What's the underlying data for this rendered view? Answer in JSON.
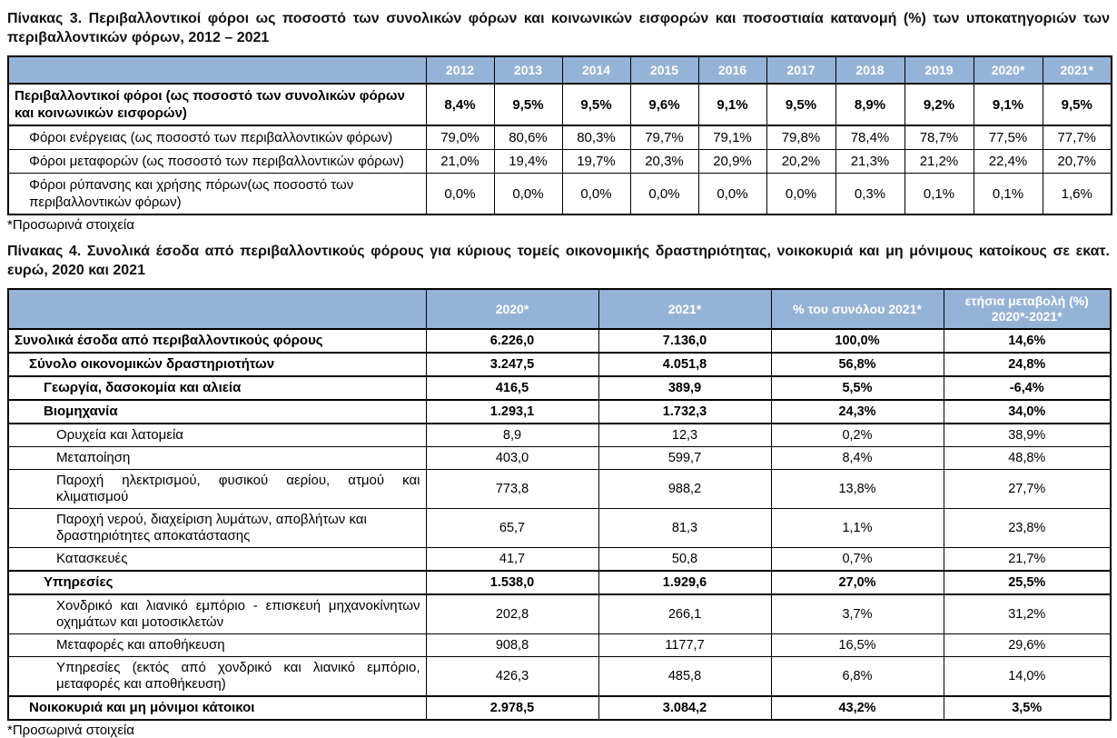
{
  "colors": {
    "header_bg": "#95B3D7",
    "header_text": "#FFFFFF",
    "border": "#000000"
  },
  "table3": {
    "title": "Πίνακας 3. Περιβαλλοντικοί φόροι ως ποσοστό των συνολικών φόρων και κοινωνικών εισφορών και ποσοστιαία κατανομή (%) των υποκατηγοριών των περιβαλλοντικών φόρων, 2012 – 2021",
    "header": [
      "2012",
      "2013",
      "2014",
      "2015",
      "2016",
      "2017",
      "2018",
      "2019",
      "2020*",
      "2021*"
    ],
    "rows": [
      {
        "label": "Περιβαλλοντικοί φόροι (ως ποσοστό των συνολικών φόρων και κοινωνικών εισφορών)",
        "bold": true,
        "indent": 0,
        "values": [
          "8,4%",
          "9,5%",
          "9,5%",
          "9,6%",
          "9,1%",
          "9,5%",
          "8,9%",
          "9,2%",
          "9,1%",
          "9,5%"
        ]
      },
      {
        "label": "Φόροι ενέργειας (ως ποσοστό των περιβαλλοντικών φόρων)",
        "bold": false,
        "indent": 1,
        "values": [
          "79,0%",
          "80,6%",
          "80,3%",
          "79,7%",
          "79,1%",
          "79,8%",
          "78,4%",
          "78,7%",
          "77,5%",
          "77,7%"
        ]
      },
      {
        "label": "Φόροι μεταφορών (ως ποσοστό των περιβαλλοντικών φόρων)",
        "bold": false,
        "indent": 1,
        "values": [
          "21,0%",
          "19,4%",
          "19,7%",
          "20,3%",
          "20,9%",
          "20,2%",
          "21,3%",
          "21,2%",
          "22,4%",
          "20,7%"
        ]
      },
      {
        "label": "Φόροι ρύπανσης και χρήσης πόρων(ως ποσοστό των περιβαλλοντικών φόρων)",
        "bold": false,
        "indent": 1,
        "values": [
          "0,0%",
          "0,0%",
          "0,0%",
          "0,0%",
          "0,0%",
          "0,0%",
          "0,3%",
          "0,1%",
          "0,1%",
          "1,6%"
        ]
      }
    ],
    "footnote": "*Προσωρινά στοιχεία"
  },
  "table4": {
    "title": "Πίνακας 4. Συνολικά έσοδα από περιβαλλοντικούς φόρους για κύριους τομείς οικονομικής δραστηριότητας, νοικοκυριά και μη μόνιμους κατοίκους σε εκατ. ευρώ, 2020 και 2021",
    "header": [
      "2020*",
      "2021*",
      "% του συνόλου 2021*",
      "ετήσια μεταβολή (%)\n2020*-2021*"
    ],
    "rows": [
      {
        "label": "Συνολικά έσοδα από περιβαλλοντικούς φόρους",
        "bold": true,
        "indent": 0,
        "values": [
          "6.226,0",
          "7.136,0",
          "100,0%",
          "14,6%"
        ]
      },
      {
        "label": "Σύνολο οικονομικών δραστηριοτήτων",
        "bold": true,
        "indent": 1,
        "values": [
          "3.247,5",
          "4.051,8",
          "56,8%",
          "24,8%"
        ]
      },
      {
        "label": "Γεωργία, δασοκομία και αλιεία",
        "bold": true,
        "indent": 2,
        "values": [
          "416,5",
          "389,9",
          "5,5%",
          "-6,4%"
        ]
      },
      {
        "label": "Βιομηχανία",
        "bold": true,
        "indent": 2,
        "values": [
          "1.293,1",
          "1.732,3",
          "24,3%",
          "34,0%"
        ]
      },
      {
        "label": "Ορυχεία και λατομεία",
        "bold": false,
        "indent": 3,
        "values": [
          "8,9",
          "12,3",
          "0,2%",
          "38,9%"
        ]
      },
      {
        "label": "Μεταποίηση",
        "bold": false,
        "indent": 3,
        "values": [
          "403,0",
          "599,7",
          "8,4%",
          "48,8%"
        ]
      },
      {
        "label": "Παροχή ηλεκτρισμού, φυσικού αερίου, ατμού και κλιματισμού",
        "bold": false,
        "indent": 3,
        "justify": true,
        "values": [
          "773,8",
          "988,2",
          "13,8%",
          "27,7%"
        ]
      },
      {
        "label": "Παροχή νερού, διαχείριση λυμάτων, αποβλήτων και δραστηριότητες αποκατάστασης",
        "bold": false,
        "indent": 3,
        "values": [
          "65,7",
          "81,3",
          "1,1%",
          "23,8%"
        ]
      },
      {
        "label": "Κατασκευές",
        "bold": false,
        "indent": 3,
        "values": [
          "41,7",
          "50,8",
          "0,7%",
          "21,7%"
        ]
      },
      {
        "label": "Υπηρεσίες",
        "bold": true,
        "indent": 2,
        "values": [
          "1.538,0",
          "1.929,6",
          "27,0%",
          "25,5%"
        ]
      },
      {
        "label": "Χονδρικό και λιανικό εμπόριο - επισκευή μηχανοκίνητων οχημάτων και μοτοσικλετών",
        "bold": false,
        "indent": 3,
        "justify": true,
        "values": [
          "202,8",
          "266,1",
          "3,7%",
          "31,2%"
        ]
      },
      {
        "label": "Μεταφορές και αποθήκευση",
        "bold": false,
        "indent": 3,
        "values": [
          "908,8",
          "1177,7",
          "16,5%",
          "29,6%"
        ]
      },
      {
        "label": "Υπηρεσίες (εκτός από χονδρικό και λιανικό εμπόριο, μεταφορές και αποθήκευση)",
        "bold": false,
        "indent": 3,
        "justify": true,
        "values": [
          "426,3",
          "485,8",
          "6,8%",
          "14,0%"
        ]
      },
      {
        "label": "Νοικοκυριά και μη μόνιμοι κάτοικοι",
        "bold": true,
        "indent": 1,
        "values": [
          "2.978,5",
          "3.084,2",
          "43,2%",
          "3,5%"
        ]
      }
    ],
    "footnote": "*Προσωρινά στοιχεία"
  }
}
